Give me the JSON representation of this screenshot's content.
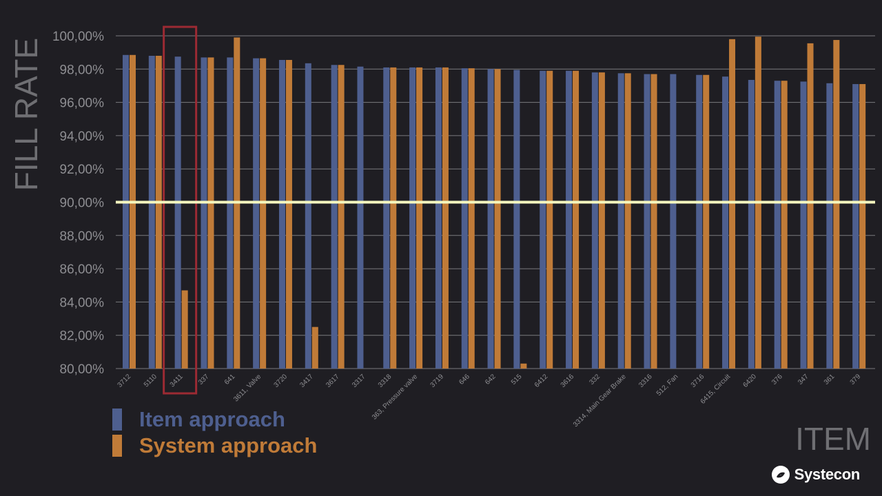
{
  "chart_data": {
    "type": "bar",
    "ylabel": "FILL RATE",
    "xlabel": "ITEM",
    "ylim": [
      80,
      100
    ],
    "y_ticks": [
      "80,00%",
      "82,00%",
      "84,00%",
      "86,00%",
      "88,00%",
      "90,00%",
      "92,00%",
      "94,00%",
      "96,00%",
      "98,00%",
      "100,00%"
    ],
    "grid": true,
    "legend_position": "bottom-left",
    "categories": [
      "3712",
      "5110",
      "3411",
      "337",
      "641",
      "3611, Valve",
      "3720",
      "3417",
      "3617",
      "3317",
      "3318",
      "363, Pressure valve",
      "3719",
      "646",
      "642",
      "515",
      "6412",
      "3616",
      "332",
      "3314, Main Gear Brake",
      "3316",
      "512, Fan",
      "3716",
      "6415, Circuit",
      "6420",
      "376",
      "347",
      "361",
      "379"
    ],
    "series": [
      {
        "name": "Item approach",
        "color": "#4e5f8f",
        "values": [
          98.85,
          98.8,
          98.75,
          98.7,
          98.7,
          98.65,
          98.55,
          98.35,
          98.25,
          98.15,
          98.1,
          98.1,
          98.1,
          98.05,
          98.0,
          97.95,
          97.9,
          97.9,
          97.8,
          97.75,
          97.7,
          97.7,
          97.65,
          97.55,
          97.35,
          97.3,
          97.25,
          97.15,
          97.1
        ]
      },
      {
        "name": "System approach",
        "color": "#c07b38",
        "values": [
          98.85,
          98.8,
          84.7,
          98.7,
          99.9,
          98.65,
          98.55,
          82.5,
          98.25,
          null,
          98.1,
          98.1,
          98.1,
          98.05,
          98.0,
          80.3,
          97.9,
          97.9,
          97.8,
          97.75,
          97.7,
          null,
          97.65,
          99.8,
          99.95,
          97.3,
          99.55,
          99.75,
          97.1
        ]
      }
    ],
    "target_line": {
      "value": 90,
      "color": "#f4f7bf"
    },
    "highlight": {
      "category": "3411",
      "color": "#9c2a33"
    }
  },
  "logo": {
    "text": "Systecon"
  }
}
